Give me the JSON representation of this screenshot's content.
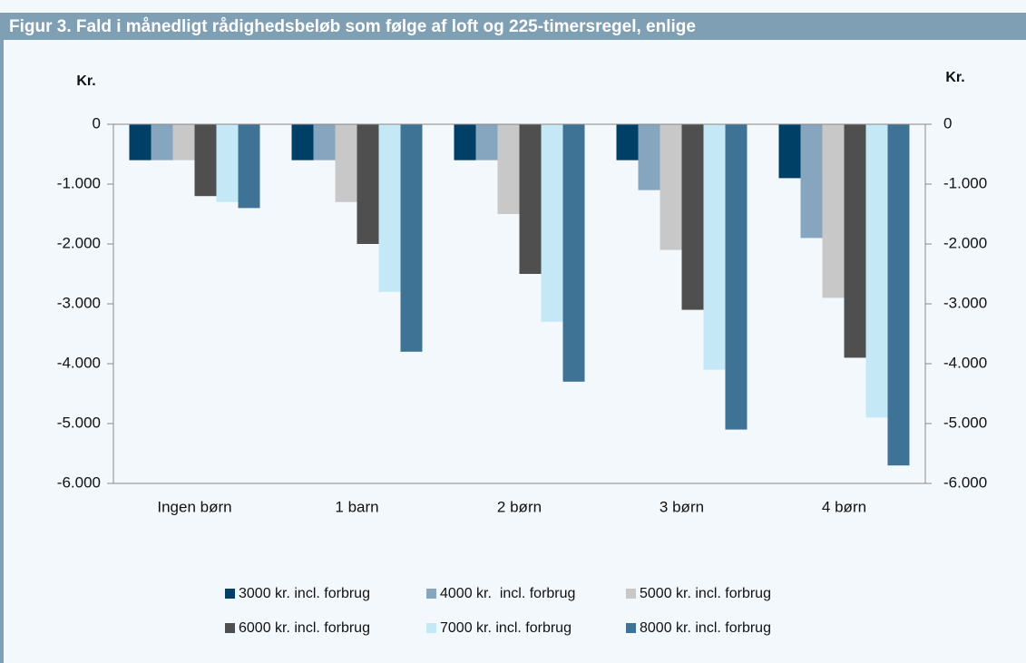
{
  "chart_data": {
    "type": "bar",
    "title": "Figur 3. Fald i månedligt rådighedsbeløb som følge af loft og 225-timersregel, enlige",
    "ylabel": "Kr.",
    "y2label": "Kr.",
    "categories": [
      "Ingen børn",
      "1 barn",
      "2 børn",
      "3 børn",
      "4 børn"
    ],
    "series": [
      {
        "name": "3000 kr. incl. forbrug",
        "color": "#003f66",
        "values": [
          -600,
          -600,
          -600,
          -600,
          -900
        ]
      },
      {
        "name": "4000 kr.  incl. forbrug",
        "color": "#86a6bf",
        "values": [
          -600,
          -600,
          -600,
          -1100,
          -1900
        ]
      },
      {
        "name": "5000 kr. incl. forbrug",
        "color": "#c8c8c8",
        "values": [
          -600,
          -1300,
          -1500,
          -2100,
          -2900
        ]
      },
      {
        "name": "6000 kr. incl. forbrug",
        "color": "#4f4f4f",
        "values": [
          -1200,
          -2000,
          -2500,
          -3100,
          -3900
        ]
      },
      {
        "name": "7000 kr. incl. forbrug",
        "color": "#c5e8f7",
        "values": [
          -1300,
          -2800,
          -3300,
          -4100,
          -4900
        ]
      },
      {
        "name": "8000 kr. incl. forbrug",
        "color": "#3f7396",
        "values": [
          -1400,
          -3800,
          -4300,
          -5100,
          -5700
        ]
      }
    ],
    "ylim": [
      -6000,
      0
    ],
    "yticks": [
      0,
      {
        "value": -1000,
        "label": "-1.000"
      },
      {
        "value": -2000,
        "label": "-2.000"
      },
      {
        "value": -3000,
        "label": "-3.000"
      },
      {
        "value": -4000,
        "label": "-4.000"
      },
      {
        "value": -5000,
        "label": "-5.000"
      },
      {
        "value": -6000,
        "label": "-6.000"
      }
    ],
    "y2lim": [
      -6000,
      0
    ],
    "y2ticks": [
      0,
      {
        "value": -1000,
        "label": "-1.000"
      },
      {
        "value": -2000,
        "label": "-2.000"
      },
      {
        "value": -3000,
        "label": "-3.000"
      },
      {
        "value": -4000,
        "label": "-4.000"
      },
      {
        "value": -5000,
        "label": "-5.000"
      },
      {
        "value": -6000,
        "label": "-6.000"
      }
    ],
    "legend": "bottom"
  }
}
